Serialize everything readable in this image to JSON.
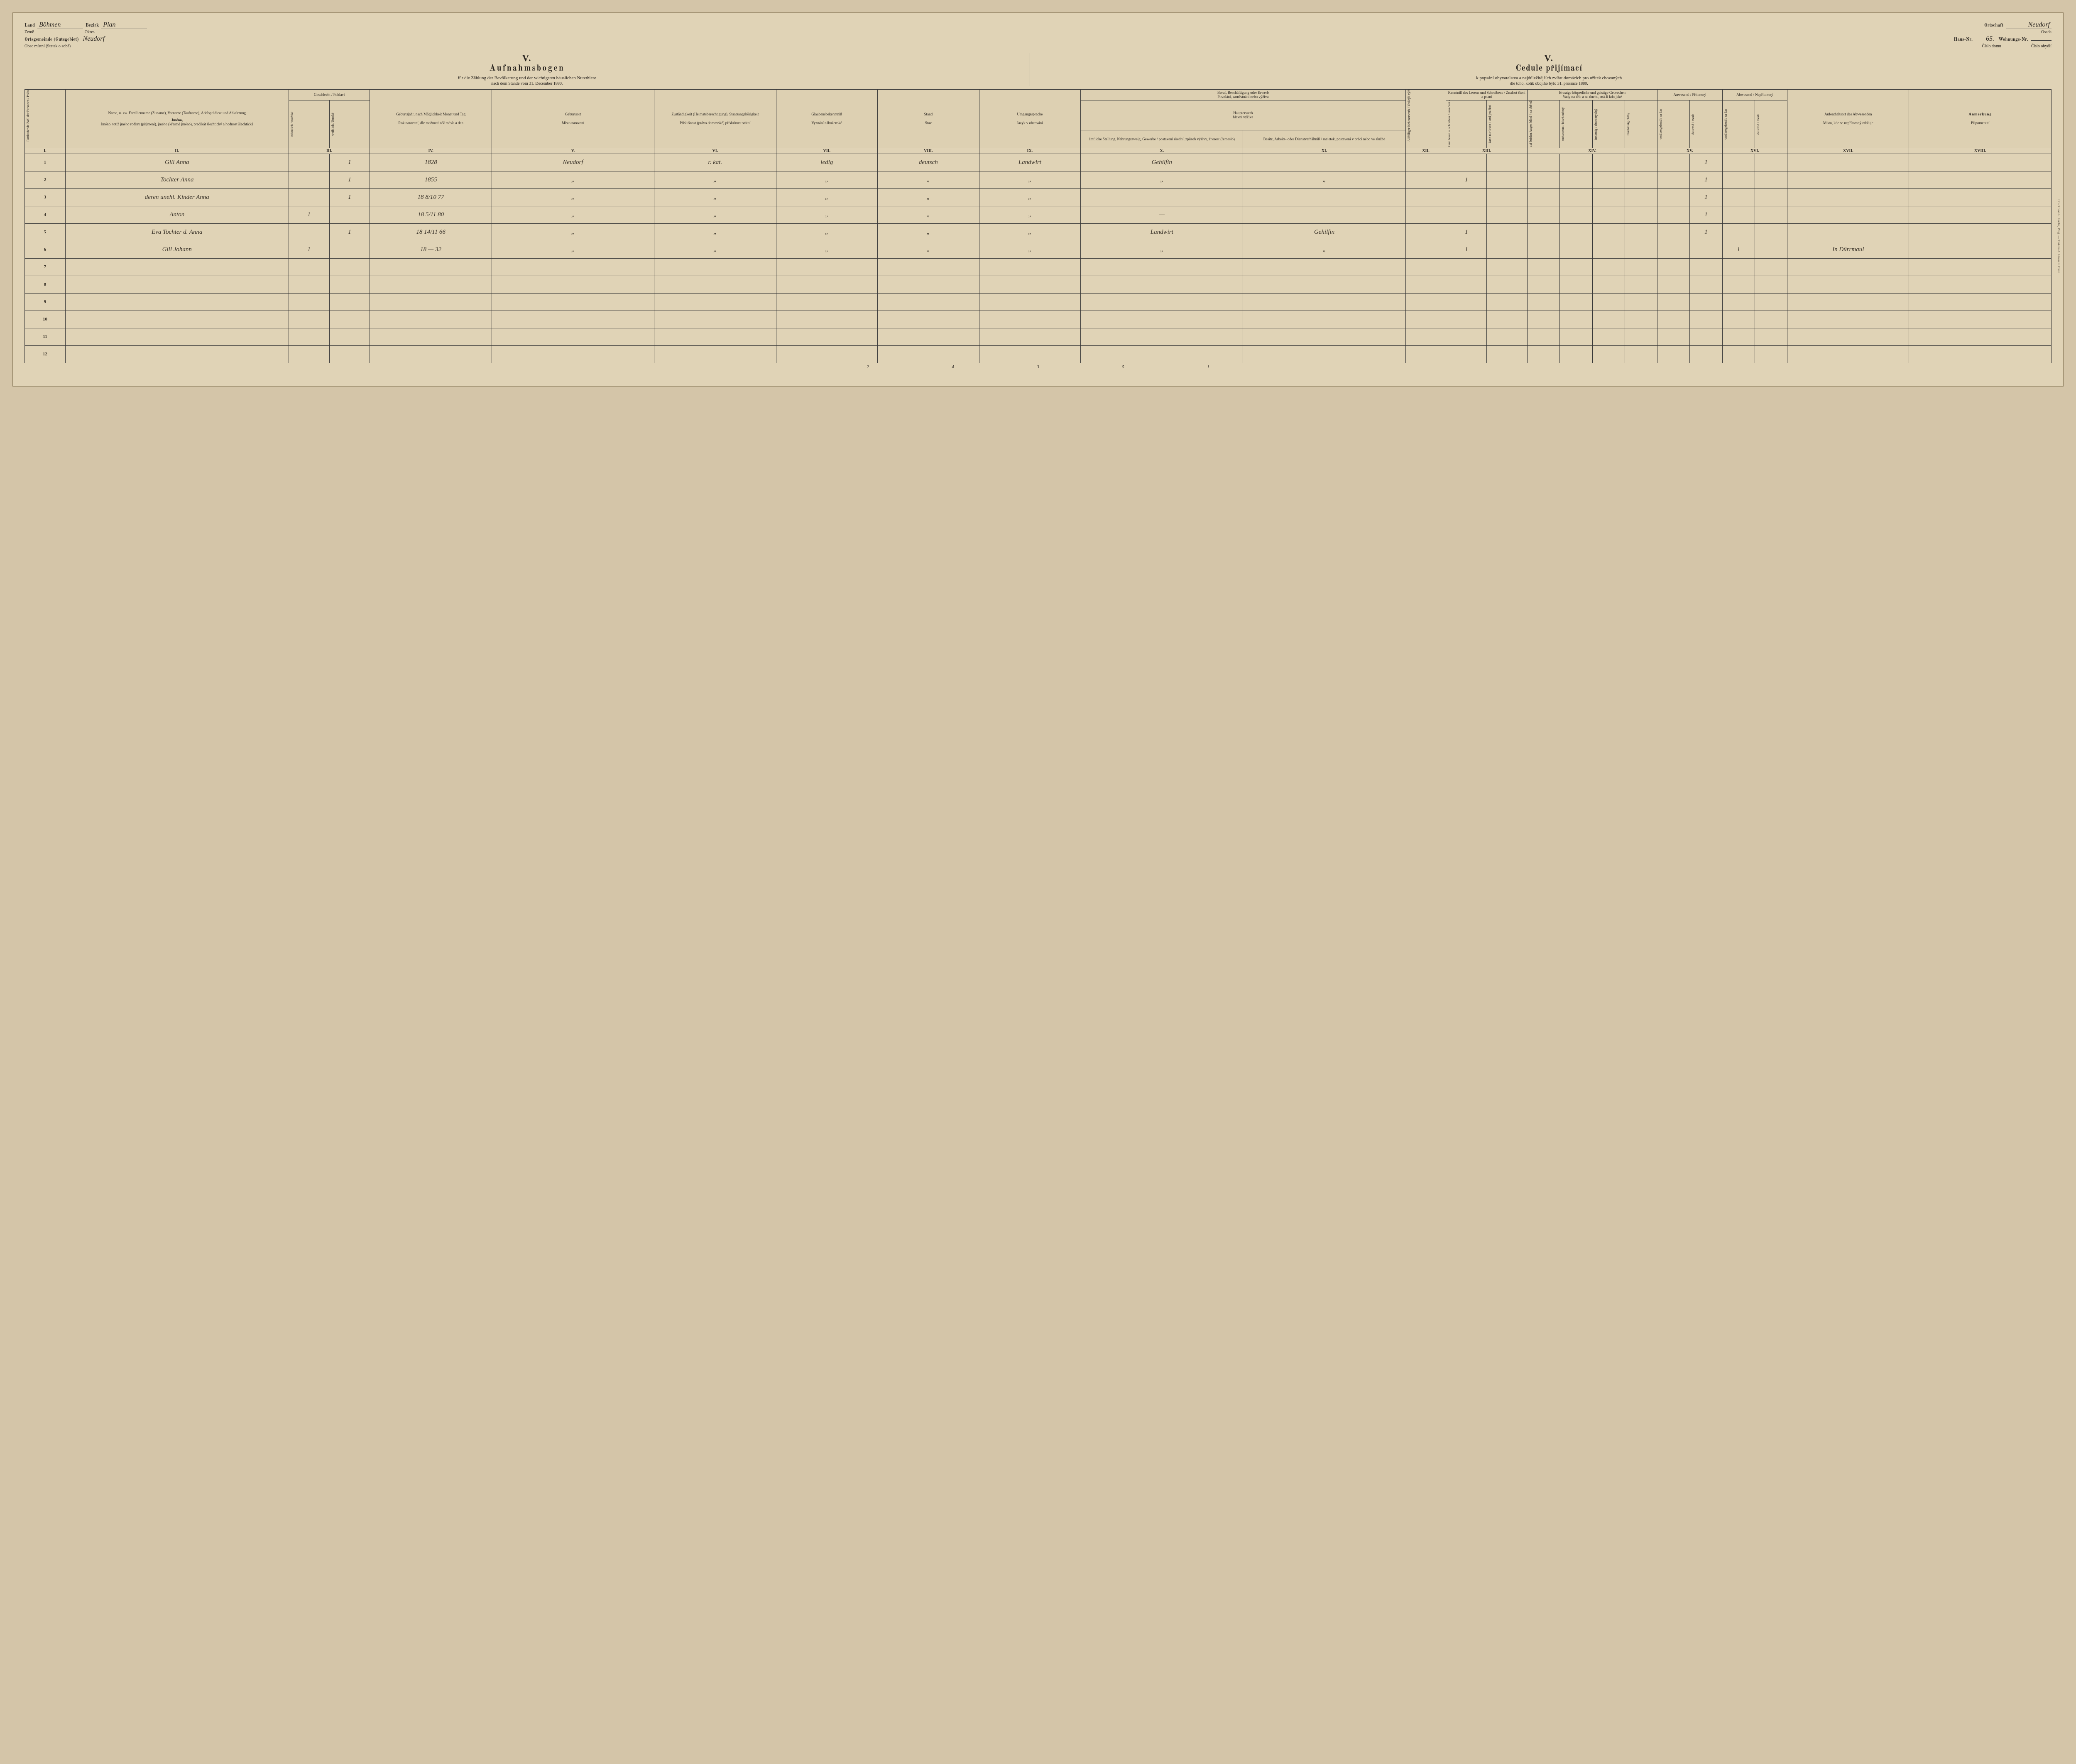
{
  "header": {
    "land_de": "Land",
    "land_cz": "Země",
    "land_val": "Böhmen",
    "bezirk_de": "Bezirk",
    "bezirk_cz": "Okres",
    "bezirk_val": "Plan",
    "ortsg_de": "Ortsgemeinde (Gutsgebiet)",
    "ortsg_cz": "Obec místní (Statek o sobě)",
    "ortsg_val": "Neudorf",
    "ortschaft_de": "Ortschaft",
    "ortschaft_cz": "Osada",
    "ortschaft_val": "Neudorf",
    "hausnr_de": "Haus-Nr.",
    "hausnr_cz": "Číslo domu",
    "hausnr_val": "65.",
    "wohnnr_de": "Wohnungs-Nr.",
    "wohnnr_cz": "Číslo obydlí",
    "wohnnr_val": ""
  },
  "titles": {
    "roman": "V.",
    "de_title": "Aufnahmsbogen",
    "de_sub": "für die Zählung der Bevölkerung und der wichtigsten häuslichen Nutzthiere",
    "de_date": "nach dem Stande vom 31. December 1880.",
    "cz_title": "Cedule přijímací",
    "cz_sub": "k popsání obyvatelstva a nejdůležitějších zvířat domácích pro užitek chovaných",
    "cz_date": "dle toho, kolik obojího bylo 31. prosince 1880."
  },
  "cols": {
    "I": "Fortlaufende Zahl der Personen / Pořad. číslo osob",
    "II_de": "Name, u. zw. Familienname (Zuname), Vorname (Taufname), Adelsprädicat und Abkürzung",
    "II_cz": "Jméno, totiž jméno rodiny (příjmení), jméno (křestné jméno), predikát šlechtický a hodnost šlechtická",
    "III_de": "Geschlecht / Pohlaví",
    "III_m": "männlich / mužské",
    "III_f": "weiblich / ženské",
    "IV_de": "Geburtsjahr, nach Möglichkeit Monat und Tag",
    "IV_cz": "Rok narození, dle možnosti též měsíc a den",
    "V_de": "Geburtsort",
    "V_cz": "Místo narození",
    "VI_de": "Zuständigkeit (Heimatsberechtigung), Staatsangehörigkeit",
    "VI_cz": "Příslušnost (právo domovské) příslušnost státní",
    "VII_de": "Glaubensbekenntniß",
    "VII_cz": "Vyznání náboženské",
    "VIII_de": "Stand",
    "VIII_cz": "Stav",
    "IX_de": "Umgangssprache",
    "IX_cz": "Jazyk v obcování",
    "X_XI_top_de": "Beruf, Beschäftigung oder Erwerb",
    "X_XI_top_cz": "Povolání, zaměstnání nebo výživa",
    "X_XI_mid_de": "Haupterwerb",
    "X_XI_mid_cz": "hlavní výživa",
    "X_de": "ämtliche Stellung, Nahrungszweig, Gewerbe / postavení úřední, způsob výživy, živnost (řemeslo)",
    "XI_de": "Besitz, Arbeits- oder Dienstverhältniß / majetek, postavení v práci nebo ve službě",
    "XII_de": "Allfälliger Nebenerwerb / Vedlejší výživa, má-li kdo jakou",
    "XIII_de": "Kenntniß des Lesens und Schreibens / Znalost čtení a psaní",
    "XIII_a": "kann lesen u. schreiben / umí čísti a psáti",
    "XIII_b": "kann nur lesen / umí jen čísti",
    "XIV_top_de": "Etwaige körperliche und geistige Gebrechen",
    "XIV_top_cz": "Vady na těle a na duchu, má-li kdo jaké",
    "XIV_a": "auf beiden Augen blind / na obě oči slepý",
    "XIV_b": "taubstumm / hluchoněmý",
    "XIV_c": "irrsinnig / choromyslný",
    "XIV_d": "blödsinnig / blbý",
    "XV_de": "Anwesend / Přítomný",
    "XV_a": "vorübergehend / na čas",
    "XV_b": "dauernd / trvale",
    "XVI_de": "Abwesend / Nepřítomný",
    "XVI_a": "vorübergehend / na čas",
    "XVI_b": "dauernd / trvale",
    "XVII_de": "Aufenthaltsort des Abwesenden",
    "XVII_cz": "Místo, kde se nepřítomný zdržuje",
    "XVIII_de": "Anmerkung",
    "XVIII_cz": "Připomenutí"
  },
  "roman": [
    "I.",
    "II.",
    "III.",
    "IV.",
    "V.",
    "VI.",
    "VII.",
    "VIII.",
    "IX.",
    "X.",
    "XI.",
    "XII.",
    "XIII.",
    "XIV.",
    "XV.",
    "XVI.",
    "XVII.",
    "XVIII."
  ],
  "rows": [
    {
      "n": "1",
      "name": "Gill Anna",
      "m": "",
      "f": "1",
      "born": "1828",
      "place": "Neudorf",
      "zust": "r. kat.",
      "rel": "ledig",
      "stand": "deutsch",
      "lang": "Landwirt",
      "occ": "Gehilfin",
      "prop": "",
      "xii": "",
      "xiii_a": "",
      "xiii_b": "",
      "xiv": "",
      "xv_a": "",
      "xv_b": "1",
      "xvi_a": "",
      "xvi_b": "",
      "xvii": "",
      "xviii": ""
    },
    {
      "n": "2",
      "name": "Tochter Anna",
      "m": "",
      "f": "1",
      "born": "1855",
      "place": "„",
      "zust": "„",
      "rel": "„",
      "stand": "„",
      "lang": "„",
      "occ": "„",
      "prop": "„",
      "xii": "",
      "xiii_a": "1",
      "xiii_b": "",
      "xiv": "",
      "xv_a": "",
      "xv_b": "1",
      "xvi_a": "",
      "xvi_b": "",
      "xvii": "",
      "xviii": ""
    },
    {
      "n": "3",
      "name": "deren unehl. Kinder Anna",
      "m": "",
      "f": "1",
      "born": "18 8/10 77",
      "place": "„",
      "zust": "„",
      "rel": "„",
      "stand": "„",
      "lang": "„",
      "occ": "",
      "prop": "",
      "xii": "",
      "xiii_a": "",
      "xiii_b": "",
      "xiv": "",
      "xv_a": "",
      "xv_b": "1",
      "xvi_a": "",
      "xvi_b": "",
      "xvii": "",
      "xviii": ""
    },
    {
      "n": "4",
      "name": "Anton",
      "m": "1",
      "f": "",
      "born": "18 5/11 80",
      "place": "„",
      "zust": "„",
      "rel": "„",
      "stand": "„",
      "lang": "„",
      "occ": "—",
      "prop": "",
      "xii": "",
      "xiii_a": "",
      "xiii_b": "",
      "xiv": "",
      "xv_a": "",
      "xv_b": "1",
      "xvi_a": "",
      "xvi_b": "",
      "xvii": "",
      "xviii": ""
    },
    {
      "n": "5",
      "name": "Eva Tochter d. Anna",
      "m": "",
      "f": "1",
      "born": "18 14/11 66",
      "place": "„",
      "zust": "„",
      "rel": "„",
      "stand": "„",
      "lang": "„",
      "occ": "Landwirt",
      "prop": "Gehilfin",
      "xii": "",
      "xiii_a": "1",
      "xiii_b": "",
      "xiv": "",
      "xv_a": "",
      "xv_b": "1",
      "xvi_a": "",
      "xvi_b": "",
      "xvii": "",
      "xviii": ""
    },
    {
      "n": "6",
      "name": "Gill Johann",
      "m": "1",
      "f": "",
      "born": "18 — 32",
      "place": "„",
      "zust": "„",
      "rel": "„",
      "stand": "„",
      "lang": "„",
      "occ": "„",
      "prop": "„",
      "xii": "",
      "xiii_a": "1",
      "xiii_b": "",
      "xiv": "",
      "xv_a": "",
      "xv_b": "",
      "xvi_a": "1",
      "xvi_b": "",
      "xvii": "In Dürrmaul",
      "xviii": ""
    },
    {
      "n": "7",
      "name": "",
      "m": "",
      "f": "",
      "born": "",
      "place": "",
      "zust": "",
      "rel": "",
      "stand": "",
      "lang": "",
      "occ": "",
      "prop": "",
      "xii": "",
      "xiii_a": "",
      "xiii_b": "",
      "xiv": "",
      "xv_a": "",
      "xv_b": "",
      "xvi_a": "",
      "xvi_b": "",
      "xvii": "",
      "xviii": ""
    },
    {
      "n": "8",
      "name": "",
      "m": "",
      "f": "",
      "born": "",
      "place": "",
      "zust": "",
      "rel": "",
      "stand": "",
      "lang": "",
      "occ": "",
      "prop": "",
      "xii": "",
      "xiii_a": "",
      "xiii_b": "",
      "xiv": "",
      "xv_a": "",
      "xv_b": "",
      "xvi_a": "",
      "xvi_b": "",
      "xvii": "",
      "xviii": ""
    },
    {
      "n": "9",
      "name": "",
      "m": "",
      "f": "",
      "born": "",
      "place": "",
      "zust": "",
      "rel": "",
      "stand": "",
      "lang": "",
      "occ": "",
      "prop": "",
      "xii": "",
      "xiii_a": "",
      "xiii_b": "",
      "xiv": "",
      "xv_a": "",
      "xv_b": "",
      "xvi_a": "",
      "xvi_b": "",
      "xvii": "",
      "xviii": ""
    },
    {
      "n": "10",
      "name": "",
      "m": "",
      "f": "",
      "born": "",
      "place": "",
      "zust": "",
      "rel": "",
      "stand": "",
      "lang": "",
      "occ": "",
      "prop": "",
      "xii": "",
      "xiii_a": "",
      "xiii_b": "",
      "xiv": "",
      "xv_a": "",
      "xv_b": "",
      "xvi_a": "",
      "xvi_b": "",
      "xvii": "",
      "xviii": ""
    },
    {
      "n": "11",
      "name": "",
      "m": "",
      "f": "",
      "born": "",
      "place": "",
      "zust": "",
      "rel": "",
      "stand": "",
      "lang": "",
      "occ": "",
      "prop": "",
      "xii": "",
      "xiii_a": "",
      "xiii_b": "",
      "xiv": "",
      "xv_a": "",
      "xv_b": "",
      "xvi_a": "",
      "xvi_b": "",
      "xvii": "",
      "xviii": ""
    },
    {
      "n": "12",
      "name": "",
      "m": "",
      "f": "",
      "born": "",
      "place": "",
      "zust": "",
      "rel": "",
      "stand": "",
      "lang": "",
      "occ": "",
      "prop": "",
      "xii": "",
      "xiii_a": "",
      "xiii_b": "",
      "xiv": "",
      "xv_a": "",
      "xv_b": "",
      "xvi_a": "",
      "xvi_b": "",
      "xvii": "",
      "xviii": ""
    }
  ],
  "footer_tally": {
    "a": "2",
    "b": "4",
    "c": "3",
    "d": "5",
    "e": "1"
  },
  "printer": "Druck von H. Fuchs, Prag. — Tiskem A. Haase v Praze."
}
